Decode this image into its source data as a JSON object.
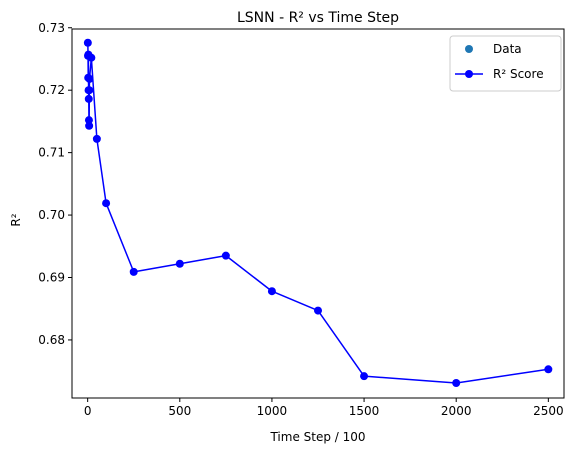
{
  "chart_data": {
    "type": "line",
    "title": "LSNN - R² vs Time Step",
    "xlabel": "Time Step / 100",
    "ylabel": "R²",
    "xlim": [
      -85,
      2585
    ],
    "ylim": [
      0.6707,
      0.7298
    ],
    "x_ticks": [
      0,
      500,
      1000,
      1500,
      2000,
      2500
    ],
    "x_tick_labels": [
      "0",
      "500",
      "1000",
      "1500",
      "2000",
      "2500"
    ],
    "y_ticks": [
      0.68,
      0.69,
      0.7,
      0.71,
      0.72,
      0.73
    ],
    "y_tick_labels": [
      "0.68",
      "0.69",
      "0.70",
      "0.71",
      "0.72",
      "0.73"
    ],
    "grid": false,
    "legend": {
      "position": "top-right",
      "entries": [
        {
          "label": "Data",
          "marker": "scatter",
          "color": "#1f77b4"
        },
        {
          "label": "R² Score",
          "marker": "line-marker",
          "color": "#0000ff"
        }
      ]
    },
    "series": [
      {
        "name": "R² Score",
        "color": "#0000ff",
        "x": [
          1,
          2,
          3,
          4,
          5,
          6,
          7,
          8,
          9,
          10,
          20,
          50,
          100,
          250,
          500,
          750,
          1000,
          1250,
          1500,
          2000,
          2500
        ],
        "y": [
          0.7276,
          0.7255,
          0.722,
          0.7257,
          0.72,
          0.7186,
          0.7152,
          0.7143,
          0.72,
          0.7218,
          0.7252,
          0.7122,
          0.7019,
          0.6909,
          0.6922,
          0.6935,
          0.6878,
          0.6847,
          0.6742,
          0.6731,
          0.6753
        ]
      }
    ]
  }
}
